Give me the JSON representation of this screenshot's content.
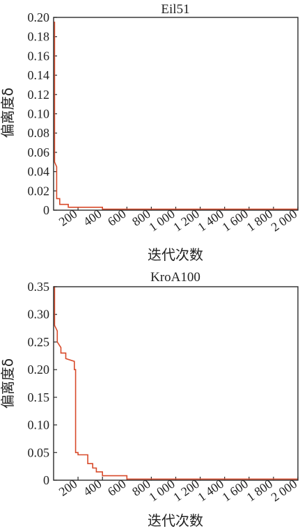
{
  "chart_data": [
    {
      "type": "line",
      "title": "Eil51",
      "xlabel": "迭代次数",
      "ylabel": "偏离度δ",
      "xlim": [
        0,
        2000
      ],
      "ylim": [
        0,
        0.2
      ],
      "x_ticks": [
        "200",
        "400",
        "600",
        "800",
        "1 000",
        "1 200",
        "1 400",
        "1 600",
        "1 800",
        "2 000"
      ],
      "x_tick_values": [
        200,
        400,
        600,
        800,
        1000,
        1200,
        1400,
        1600,
        1800,
        2000
      ],
      "y_ticks": [
        "0",
        "0.02",
        "0.04",
        "0.06",
        "0.08",
        "0.10",
        "0.12",
        "0.14",
        "0.16",
        "0.18",
        "0.20"
      ],
      "y_tick_values": [
        0,
        0.02,
        0.04,
        0.06,
        0.08,
        0.1,
        0.12,
        0.14,
        0.16,
        0.18,
        0.2
      ],
      "grid": false,
      "color": "#d84a2a",
      "x": [
        0,
        8,
        8,
        25,
        25,
        50,
        50,
        120,
        120,
        400,
        400,
        2000
      ],
      "y": [
        0.195,
        0.195,
        0.05,
        0.045,
        0.012,
        0.012,
        0.006,
        0.006,
        0.003,
        0.003,
        0.001,
        0.001
      ]
    },
    {
      "type": "line",
      "title": "KroA100",
      "xlabel": "迭代次数",
      "ylabel": "偏离度δ",
      "xlim": [
        0,
        2000
      ],
      "ylim": [
        0,
        0.35
      ],
      "x_ticks": [
        "200",
        "400",
        "600",
        "800",
        "1 000",
        "1 200",
        "1 400",
        "1 600",
        "1 800",
        "2 000"
      ],
      "x_tick_values": [
        200,
        400,
        600,
        800,
        1000,
        1200,
        1400,
        1600,
        1800,
        2000
      ],
      "y_ticks": [
        "0",
        "0.05",
        "0.10",
        "0.15",
        "0.20",
        "0.25",
        "0.30",
        "0.35"
      ],
      "y_tick_values": [
        0,
        0.05,
        0.1,
        0.15,
        0.2,
        0.25,
        0.3,
        0.35
      ],
      "grid": false,
      "color": "#d84a2a",
      "x": [
        0,
        8,
        8,
        30,
        30,
        60,
        60,
        100,
        100,
        170,
        170,
        180,
        180,
        200,
        200,
        280,
        280,
        320,
        320,
        350,
        350,
        400,
        400,
        600,
        600,
        2000
      ],
      "y": [
        0.35,
        0.35,
        0.28,
        0.27,
        0.25,
        0.24,
        0.23,
        0.23,
        0.22,
        0.215,
        0.2,
        0.2,
        0.05,
        0.05,
        0.046,
        0.046,
        0.03,
        0.03,
        0.022,
        0.022,
        0.015,
        0.015,
        0.008,
        0.008,
        0.002,
        0.002
      ]
    }
  ]
}
